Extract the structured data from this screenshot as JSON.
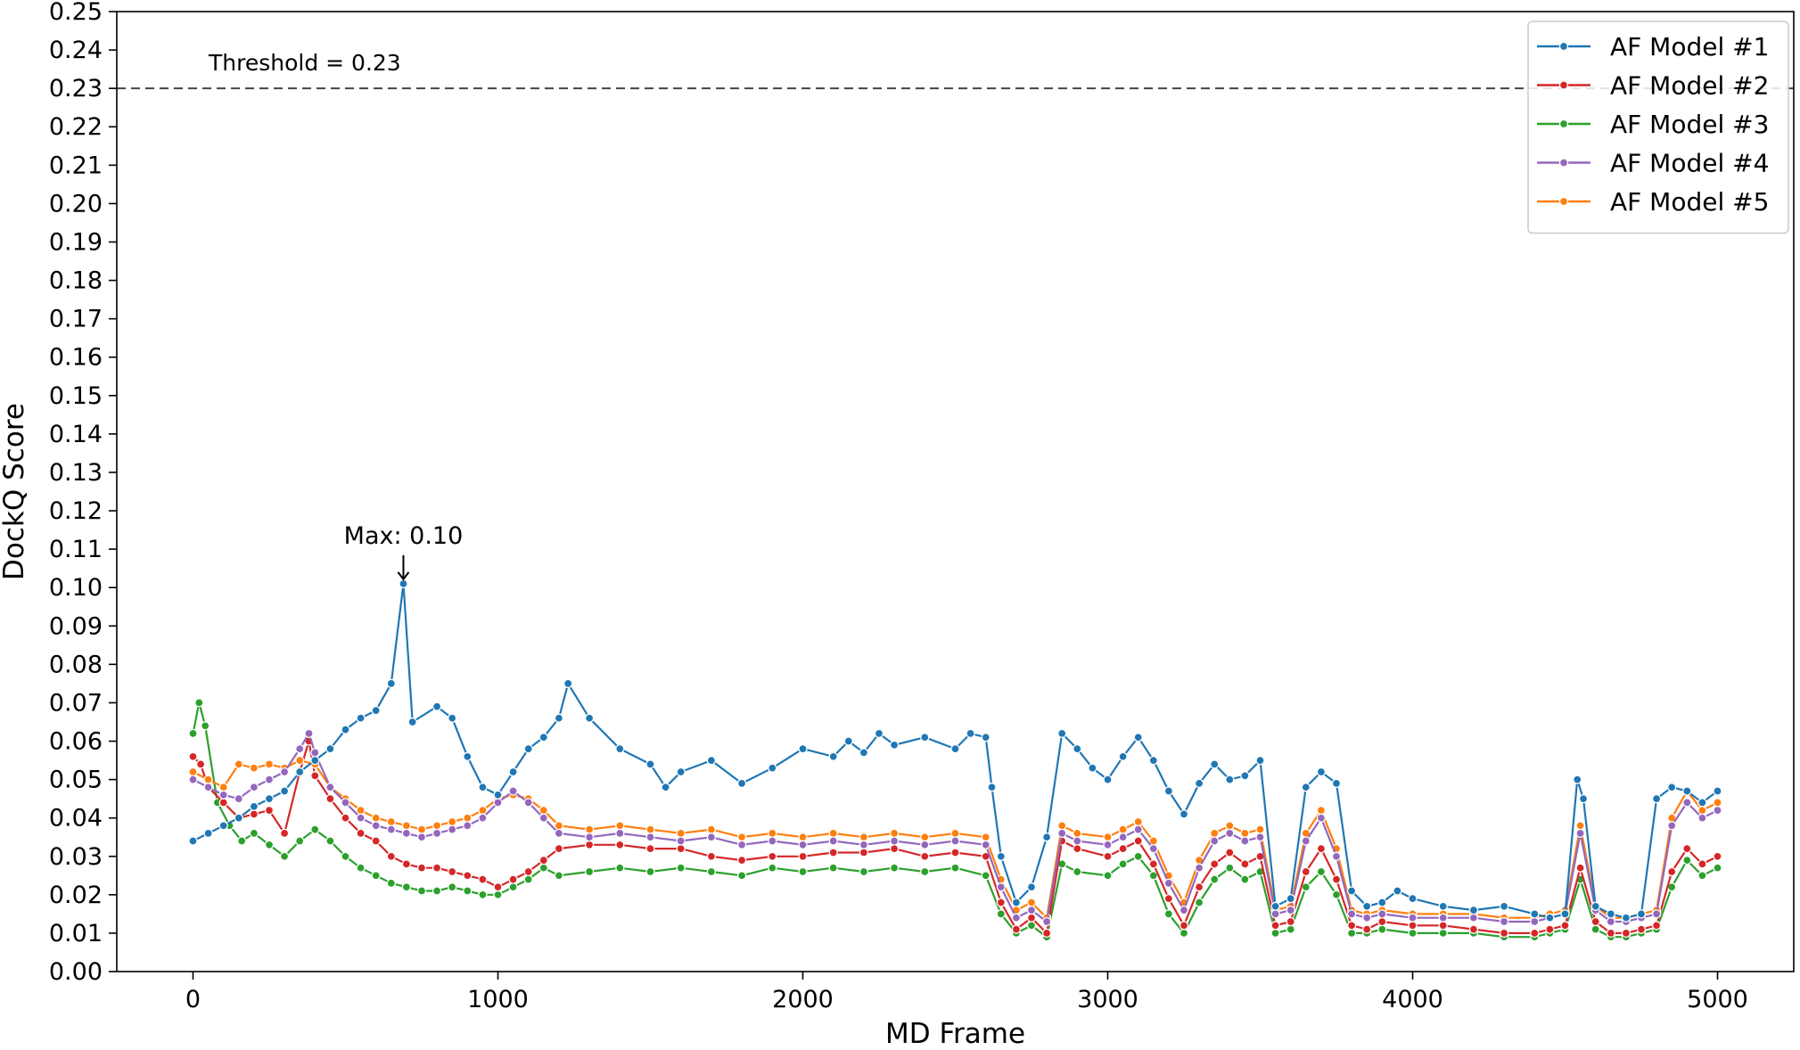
{
  "chart_data": {
    "type": "line",
    "xlabel": "MD Frame",
    "ylabel": "DockQ Score",
    "xlim": [
      -250,
      5250
    ],
    "ylim": [
      0.0,
      0.25
    ],
    "xticks": [
      0,
      1000,
      2000,
      3000,
      4000,
      5000
    ],
    "xtick_labels": [
      "0",
      "1000",
      "2000",
      "3000",
      "4000",
      "5000"
    ],
    "yticks": [
      0.0,
      0.01,
      0.02,
      0.03,
      0.04,
      0.05,
      0.06,
      0.07,
      0.08,
      0.09,
      0.1,
      0.11,
      0.12,
      0.13,
      0.14,
      0.15,
      0.16,
      0.17,
      0.18,
      0.19,
      0.2,
      0.21,
      0.22,
      0.23,
      0.24,
      0.25
    ],
    "ytick_labels": [
      "0.00",
      "0.01",
      "0.02",
      "0.03",
      "0.04",
      "0.05",
      "0.06",
      "0.07",
      "0.08",
      "0.09",
      "0.10",
      "0.11",
      "0.12",
      "0.13",
      "0.14",
      "0.15",
      "0.16",
      "0.17",
      "0.18",
      "0.19",
      "0.20",
      "0.21",
      "0.22",
      "0.23",
      "0.24",
      "0.25"
    ],
    "grid": false,
    "legend_position": "top-right",
    "threshold": {
      "value": 0.23,
      "label": "Threshold = 0.23",
      "color": "#444444",
      "style": "dashed"
    },
    "annotation": {
      "text": "Max: 0.10",
      "x": 690,
      "y": 0.101
    },
    "series": [
      {
        "name": "AF Model #1",
        "color": "#1f77b4",
        "x": [
          0,
          50,
          100,
          150,
          200,
          250,
          300,
          350,
          400,
          450,
          500,
          550,
          600,
          650,
          690,
          720,
          800,
          850,
          900,
          950,
          1000,
          1050,
          1100,
          1150,
          1200,
          1230,
          1300,
          1400,
          1500,
          1550,
          1600,
          1700,
          1800,
          1900,
          2000,
          2100,
          2150,
          2200,
          2250,
          2300,
          2400,
          2500,
          2550,
          2600,
          2620,
          2650,
          2700,
          2750,
          2800,
          2850,
          2900,
          2950,
          3000,
          3050,
          3100,
          3150,
          3200,
          3250,
          3300,
          3350,
          3400,
          3450,
          3500,
          3550,
          3600,
          3650,
          3700,
          3750,
          3800,
          3850,
          3900,
          3950,
          4000,
          4100,
          4200,
          4300,
          4400,
          4450,
          4500,
          4540,
          4560,
          4600,
          4650,
          4700,
          4750,
          4800,
          4850,
          4900,
          4950,
          5000
        ],
        "y": [
          0.034,
          0.036,
          0.038,
          0.04,
          0.043,
          0.045,
          0.047,
          0.052,
          0.055,
          0.058,
          0.063,
          0.066,
          0.068,
          0.075,
          0.101,
          0.065,
          0.069,
          0.066,
          0.056,
          0.048,
          0.046,
          0.052,
          0.058,
          0.061,
          0.066,
          0.075,
          0.066,
          0.058,
          0.054,
          0.048,
          0.052,
          0.055,
          0.049,
          0.053,
          0.058,
          0.056,
          0.06,
          0.057,
          0.062,
          0.059,
          0.061,
          0.058,
          0.062,
          0.061,
          0.048,
          0.03,
          0.018,
          0.022,
          0.035,
          0.062,
          0.058,
          0.053,
          0.05,
          0.056,
          0.061,
          0.055,
          0.047,
          0.041,
          0.049,
          0.054,
          0.05,
          0.051,
          0.055,
          0.017,
          0.019,
          0.048,
          0.052,
          0.049,
          0.021,
          0.017,
          0.018,
          0.021,
          0.019,
          0.017,
          0.016,
          0.017,
          0.015,
          0.014,
          0.015,
          0.05,
          0.045,
          0.017,
          0.015,
          0.014,
          0.015,
          0.045,
          0.048,
          0.047,
          0.044,
          0.047
        ]
      },
      {
        "name": "AF Model #2",
        "color": "#d62728",
        "x": [
          0,
          25,
          50,
          100,
          150,
          200,
          250,
          300,
          350,
          380,
          400,
          450,
          500,
          550,
          600,
          650,
          700,
          750,
          800,
          850,
          900,
          950,
          1000,
          1050,
          1100,
          1150,
          1200,
          1300,
          1400,
          1500,
          1600,
          1700,
          1800,
          1900,
          2000,
          2100,
          2200,
          2300,
          2400,
          2500,
          2600,
          2650,
          2700,
          2750,
          2800,
          2850,
          2900,
          3000,
          3050,
          3100,
          3150,
          3200,
          3250,
          3300,
          3350,
          3400,
          3450,
          3500,
          3550,
          3600,
          3650,
          3700,
          3750,
          3800,
          3850,
          3900,
          4000,
          4100,
          4200,
          4300,
          4400,
          4450,
          4500,
          4550,
          4600,
          4650,
          4700,
          4750,
          4800,
          4850,
          4900,
          4950,
          5000
        ],
        "y": [
          0.056,
          0.054,
          0.048,
          0.044,
          0.04,
          0.041,
          0.042,
          0.036,
          0.052,
          0.06,
          0.051,
          0.045,
          0.04,
          0.036,
          0.034,
          0.03,
          0.028,
          0.027,
          0.027,
          0.026,
          0.025,
          0.024,
          0.022,
          0.024,
          0.026,
          0.029,
          0.032,
          0.033,
          0.033,
          0.032,
          0.032,
          0.03,
          0.029,
          0.03,
          0.03,
          0.031,
          0.031,
          0.032,
          0.03,
          0.031,
          0.03,
          0.018,
          0.011,
          0.014,
          0.01,
          0.034,
          0.032,
          0.03,
          0.032,
          0.034,
          0.028,
          0.019,
          0.012,
          0.022,
          0.028,
          0.031,
          0.028,
          0.03,
          0.012,
          0.013,
          0.026,
          0.032,
          0.024,
          0.012,
          0.011,
          0.013,
          0.012,
          0.012,
          0.011,
          0.01,
          0.01,
          0.011,
          0.012,
          0.027,
          0.013,
          0.01,
          0.01,
          0.011,
          0.012,
          0.026,
          0.032,
          0.028,
          0.03
        ]
      },
      {
        "name": "AF Model #3",
        "color": "#2ca02c",
        "x": [
          0,
          20,
          40,
          80,
          120,
          160,
          200,
          250,
          300,
          350,
          400,
          450,
          500,
          550,
          600,
          650,
          700,
          750,
          800,
          850,
          900,
          950,
          1000,
          1050,
          1100,
          1150,
          1200,
          1300,
          1400,
          1500,
          1600,
          1700,
          1800,
          1900,
          2000,
          2100,
          2200,
          2300,
          2400,
          2500,
          2600,
          2650,
          2700,
          2750,
          2800,
          2850,
          2900,
          3000,
          3050,
          3100,
          3150,
          3200,
          3250,
          3300,
          3350,
          3400,
          3450,
          3500,
          3550,
          3600,
          3650,
          3700,
          3750,
          3800,
          3850,
          3900,
          4000,
          4100,
          4200,
          4300,
          4400,
          4450,
          4500,
          4550,
          4600,
          4650,
          4700,
          4750,
          4800,
          4850,
          4900,
          4950,
          5000
        ],
        "y": [
          0.062,
          0.07,
          0.064,
          0.044,
          0.038,
          0.034,
          0.036,
          0.033,
          0.03,
          0.034,
          0.037,
          0.034,
          0.03,
          0.027,
          0.025,
          0.023,
          0.022,
          0.021,
          0.021,
          0.022,
          0.021,
          0.02,
          0.02,
          0.022,
          0.024,
          0.027,
          0.025,
          0.026,
          0.027,
          0.026,
          0.027,
          0.026,
          0.025,
          0.027,
          0.026,
          0.027,
          0.026,
          0.027,
          0.026,
          0.027,
          0.025,
          0.015,
          0.01,
          0.012,
          0.009,
          0.028,
          0.026,
          0.025,
          0.028,
          0.03,
          0.025,
          0.015,
          0.01,
          0.018,
          0.024,
          0.027,
          0.024,
          0.026,
          0.01,
          0.011,
          0.022,
          0.026,
          0.02,
          0.01,
          0.01,
          0.011,
          0.01,
          0.01,
          0.01,
          0.009,
          0.009,
          0.01,
          0.011,
          0.024,
          0.011,
          0.009,
          0.009,
          0.01,
          0.011,
          0.022,
          0.029,
          0.025,
          0.027
        ]
      },
      {
        "name": "AF Model #4",
        "color": "#9467bd",
        "x": [
          0,
          50,
          100,
          150,
          200,
          250,
          300,
          350,
          380,
          400,
          450,
          500,
          550,
          600,
          650,
          700,
          750,
          800,
          850,
          900,
          950,
          1000,
          1050,
          1100,
          1150,
          1200,
          1300,
          1400,
          1500,
          1600,
          1700,
          1800,
          1900,
          2000,
          2100,
          2200,
          2300,
          2400,
          2500,
          2600,
          2650,
          2700,
          2750,
          2800,
          2850,
          2900,
          3000,
          3050,
          3100,
          3150,
          3200,
          3250,
          3300,
          3350,
          3400,
          3450,
          3500,
          3550,
          3600,
          3650,
          3700,
          3750,
          3800,
          3850,
          3900,
          4000,
          4100,
          4200,
          4300,
          4400,
          4450,
          4500,
          4550,
          4600,
          4650,
          4700,
          4750,
          4800,
          4850,
          4900,
          4950,
          5000
        ],
        "y": [
          0.05,
          0.048,
          0.046,
          0.045,
          0.048,
          0.05,
          0.052,
          0.058,
          0.062,
          0.057,
          0.048,
          0.044,
          0.04,
          0.038,
          0.037,
          0.036,
          0.035,
          0.036,
          0.037,
          0.038,
          0.04,
          0.044,
          0.047,
          0.044,
          0.04,
          0.036,
          0.035,
          0.036,
          0.035,
          0.034,
          0.035,
          0.033,
          0.034,
          0.033,
          0.034,
          0.033,
          0.034,
          0.033,
          0.034,
          0.033,
          0.022,
          0.014,
          0.016,
          0.013,
          0.036,
          0.034,
          0.033,
          0.035,
          0.037,
          0.032,
          0.023,
          0.016,
          0.027,
          0.034,
          0.036,
          0.034,
          0.035,
          0.015,
          0.016,
          0.034,
          0.04,
          0.03,
          0.015,
          0.014,
          0.015,
          0.014,
          0.014,
          0.014,
          0.013,
          0.013,
          0.014,
          0.015,
          0.036,
          0.016,
          0.013,
          0.013,
          0.014,
          0.015,
          0.038,
          0.044,
          0.04,
          0.042
        ]
      },
      {
        "name": "AF Model #5",
        "color": "#ff7f0e",
        "x": [
          0,
          50,
          100,
          150,
          200,
          250,
          300,
          350,
          400,
          450,
          500,
          550,
          600,
          650,
          700,
          750,
          800,
          850,
          900,
          950,
          1000,
          1050,
          1100,
          1150,
          1200,
          1300,
          1400,
          1500,
          1600,
          1700,
          1800,
          1900,
          2000,
          2100,
          2200,
          2300,
          2400,
          2500,
          2600,
          2650,
          2700,
          2750,
          2800,
          2850,
          2900,
          3000,
          3050,
          3100,
          3150,
          3200,
          3250,
          3300,
          3350,
          3400,
          3450,
          3500,
          3550,
          3600,
          3650,
          3700,
          3750,
          3800,
          3850,
          3900,
          4000,
          4100,
          4200,
          4300,
          4400,
          4450,
          4500,
          4550,
          4600,
          4650,
          4700,
          4750,
          4800,
          4850,
          4900,
          4950,
          5000
        ],
        "y": [
          0.052,
          0.05,
          0.048,
          0.054,
          0.053,
          0.054,
          0.053,
          0.055,
          0.054,
          0.048,
          0.045,
          0.042,
          0.04,
          0.039,
          0.038,
          0.037,
          0.038,
          0.039,
          0.04,
          0.042,
          0.045,
          0.046,
          0.045,
          0.042,
          0.038,
          0.037,
          0.038,
          0.037,
          0.036,
          0.037,
          0.035,
          0.036,
          0.035,
          0.036,
          0.035,
          0.036,
          0.035,
          0.036,
          0.035,
          0.024,
          0.016,
          0.018,
          0.014,
          0.038,
          0.036,
          0.035,
          0.037,
          0.039,
          0.034,
          0.025,
          0.018,
          0.029,
          0.036,
          0.038,
          0.036,
          0.037,
          0.016,
          0.017,
          0.036,
          0.042,
          0.032,
          0.016,
          0.015,
          0.016,
          0.015,
          0.015,
          0.015,
          0.014,
          0.014,
          0.015,
          0.016,
          0.038,
          0.017,
          0.014,
          0.014,
          0.015,
          0.016,
          0.04,
          0.047,
          0.042,
          0.044
        ]
      }
    ]
  }
}
